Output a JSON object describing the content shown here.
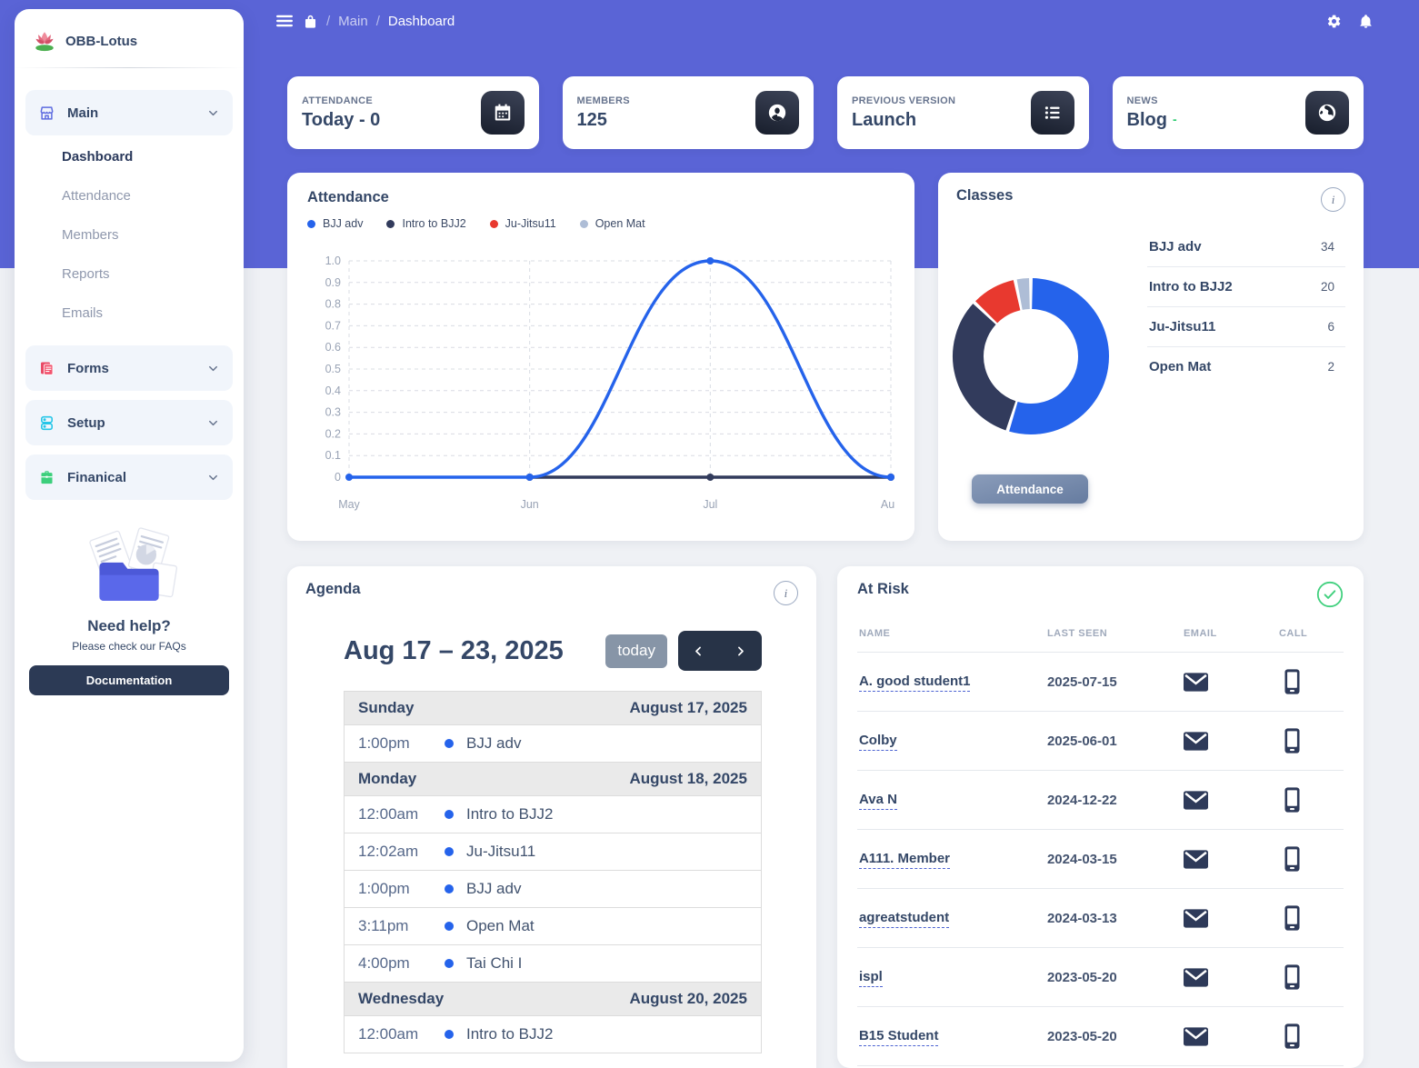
{
  "app": {
    "brand": "OBB-Lotus"
  },
  "topbar": {
    "breadcrumb": {
      "separator": "/",
      "section": "Main",
      "page": "Dashboard"
    }
  },
  "sidebar": {
    "groups": [
      {
        "label": "Main",
        "icon": "storefront-icon",
        "expanded": true,
        "items": [
          {
            "label": "Dashboard",
            "active": true
          },
          {
            "label": "Attendance",
            "active": false
          },
          {
            "label": "Members",
            "active": false
          },
          {
            "label": "Reports",
            "active": false
          },
          {
            "label": "Emails",
            "active": false
          }
        ]
      },
      {
        "label": "Forms",
        "icon": "forms-icon",
        "expanded": false,
        "items": []
      },
      {
        "label": "Setup",
        "icon": "setup-icon",
        "expanded": false,
        "items": []
      },
      {
        "label": "Finanical",
        "icon": "finance-icon",
        "expanded": false,
        "items": []
      }
    ],
    "help": {
      "title": "Need help?",
      "subtitle": "Please check our FAQs",
      "button_label": "Documentation"
    }
  },
  "stat_cards": [
    {
      "label": "ATTENDANCE",
      "value": "Today - 0",
      "icon": "calendar-icon"
    },
    {
      "label": "MEMBERS",
      "value": "125",
      "icon": "member-icon"
    },
    {
      "label": "PREVIOUS VERSION",
      "value": "Launch",
      "icon": "list-icon"
    },
    {
      "label": "NEWS",
      "value": "Blog",
      "value_suffix": "-",
      "icon": "globe-icon"
    }
  ],
  "attendance_panel": {
    "title": "Attendance"
  },
  "chart_data": [
    {
      "type": "line",
      "title": "Attendance",
      "x": [
        "May",
        "Jun",
        "Jul",
        "Aug"
      ],
      "series": [
        {
          "name": "BJJ adv",
          "color": "#2563eb",
          "values": [
            0,
            0,
            1,
            0
          ]
        },
        {
          "name": "Intro to BJJ2",
          "color": "#323b5c",
          "values": [
            null,
            0,
            0,
            0
          ]
        },
        {
          "name": "Ju-Jitsu11",
          "color": "#e8392f",
          "values": [
            null,
            null,
            null,
            null
          ]
        },
        {
          "name": "Open Mat",
          "color": "#aebdd6",
          "values": [
            null,
            null,
            null,
            null
          ]
        }
      ],
      "ylim": [
        0,
        1
      ],
      "ytick_step": 0.1,
      "grid": true,
      "legend_position": "top"
    },
    {
      "type": "donut",
      "title": "Classes",
      "categories": [
        "BJJ adv",
        "Intro to BJJ2",
        "Ju-Jitsu11",
        "Open Mat"
      ],
      "values": [
        34,
        20,
        6,
        2
      ],
      "colors": [
        "#2563eb",
        "#323b5c",
        "#e8392f",
        "#aebdd6"
      ]
    }
  ],
  "classes_panel": {
    "title": "Classes",
    "button_label": "Attendance",
    "rows": [
      {
        "label": "BJJ adv",
        "value": "34"
      },
      {
        "label": "Intro to BJJ2",
        "value": "20"
      },
      {
        "label": "Ju-Jitsu11",
        "value": "6"
      },
      {
        "label": "Open Mat",
        "value": "2"
      }
    ]
  },
  "agenda": {
    "title": "Agenda",
    "range": "Aug 17 – 23, 2025",
    "today_label": "today",
    "days": [
      {
        "day": "Sunday",
        "date": "August 17, 2025",
        "events": [
          {
            "time": "1:00pm",
            "label": "BJJ adv"
          }
        ]
      },
      {
        "day": "Monday",
        "date": "August 18, 2025",
        "events": [
          {
            "time": "12:00am",
            "label": "Intro to BJJ2"
          },
          {
            "time": "12:02am",
            "label": "Ju-Jitsu11"
          },
          {
            "time": "1:00pm",
            "label": "BJJ adv"
          },
          {
            "time": "3:11pm",
            "label": "Open Mat"
          },
          {
            "time": "4:00pm",
            "label": "Tai Chi I"
          }
        ]
      },
      {
        "day": "Wednesday",
        "date": "August 20, 2025",
        "events": [
          {
            "time": "12:00am",
            "label": "Intro to BJJ2"
          }
        ]
      }
    ]
  },
  "at_risk": {
    "title": "At Risk",
    "columns": [
      "NAME",
      "LAST SEEN",
      "EMAIL",
      "CALL"
    ],
    "rows": [
      {
        "name": "A. good student1",
        "last_seen": "2025-07-15"
      },
      {
        "name": "Colby",
        "last_seen": "2025-06-01"
      },
      {
        "name": "Ava N",
        "last_seen": "2024-12-22"
      },
      {
        "name": "A111. Member",
        "last_seen": "2024-03-15"
      },
      {
        "name": "agreatstudent",
        "last_seen": "2024-03-13"
      },
      {
        "name": "ispl",
        "last_seen": "2023-05-20"
      },
      {
        "name": "B15 Student",
        "last_seen": "2023-05-20"
      }
    ]
  },
  "colors": {
    "header_purple": "#5a64d6",
    "accent_blue": "#2563eb",
    "navy": "#323b5c",
    "red": "#e8392f",
    "muted_blue": "#aebdd6",
    "success_green": "#41d07e"
  }
}
